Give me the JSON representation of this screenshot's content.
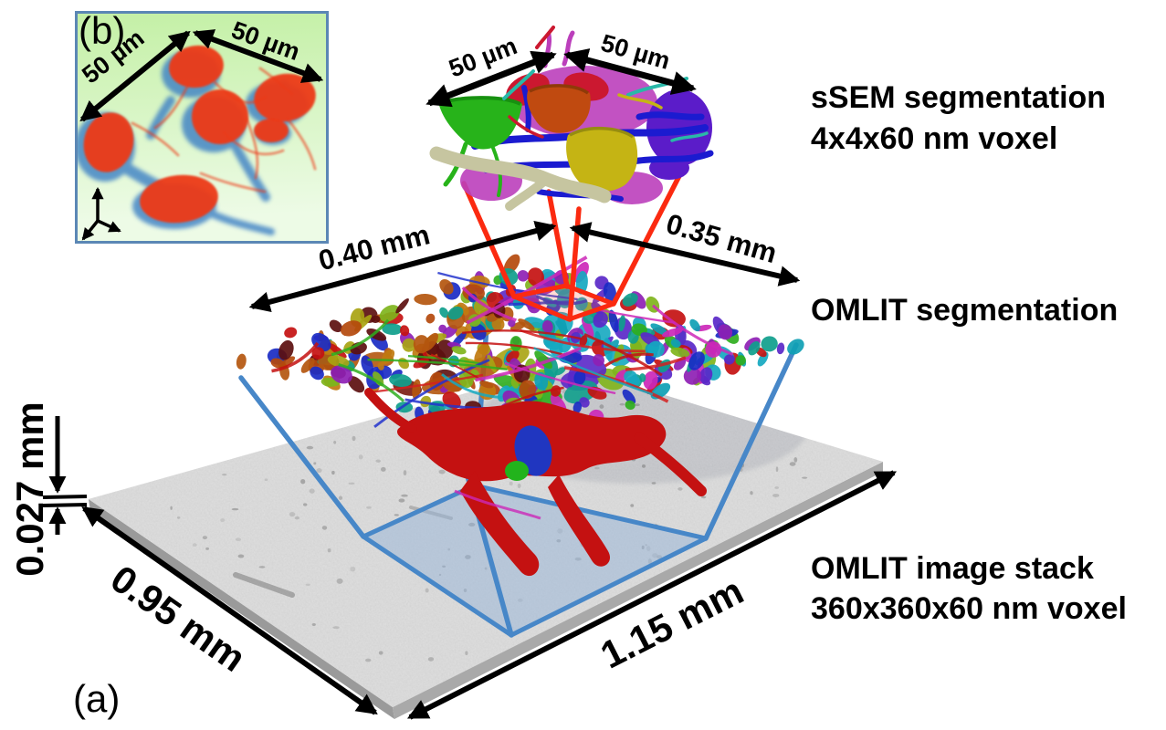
{
  "panel": {
    "a": "(a)",
    "b": "(b)"
  },
  "labels": {
    "ssem_title": "sSEM segmentation",
    "ssem_voxel": "4x4x60 nm voxel",
    "omlit_segmentation": "OMLIT segmentation",
    "omlit_stack_title": "OMLIT image stack",
    "omlit_stack_voxel": "360x360x60 nm voxel"
  },
  "dimensions": {
    "inset_width": "50 µm",
    "inset_depth": "50 µm",
    "ssem_width": "50 µm",
    "ssem_depth": "50 µm",
    "omlit_width": "0.40 mm",
    "omlit_depth": "0.35 mm",
    "stack_thickness": "0.027 mm",
    "stack_width": "0.95 mm",
    "stack_depth": "1.15 mm"
  },
  "colors": {
    "arrow": "#000000",
    "ssem_frustum": "#fb2a10",
    "omlit_frustum": "#4787c8",
    "subvolume_fill": "rgba(150,180,215,0.5)",
    "inset_border": "#5b87b5",
    "inset_bg_top": "#c4f0a6",
    "inset_bg_bottom": "#edfbe6",
    "inset_cell": "#ec3a17",
    "inset_glia": "#3b7fc4",
    "slab_top": "#cbcbcb",
    "slab_side": "#9a9a9a",
    "vessel_red": "#c41111",
    "ssem": {
      "green": "#27b31a",
      "orange": "#c04a10",
      "crimson": "#cb1830",
      "yellow": "#c5b414",
      "purple": "#5b1cc9",
      "magenta": "#bb3fbb",
      "blue": "#1b1bd0",
      "beige": "#c6c5a0",
      "teal": "#28b8a8"
    },
    "omlit_palette_left": [
      "#a8a312",
      "#c07a10",
      "#b4490c",
      "#5c0f0f",
      "#c41111",
      "#7fb41c",
      "#0f9e8c",
      "#1a2bc4",
      "#8e1fb4",
      "#b4560e"
    ],
    "omlit_palette_right": [
      "#2fae1e",
      "#7fb41c",
      "#0f9e8c",
      "#15a8c0",
      "#1a2bc4",
      "#5a28c8",
      "#8e1fb4",
      "#cc28b8",
      "#c41111",
      "#0fa0b4"
    ],
    "strand_palette": [
      "#c41111",
      "#2233cc",
      "#cc28b8",
      "#2fae1e",
      "#15a8c0",
      "#d42020"
    ]
  }
}
